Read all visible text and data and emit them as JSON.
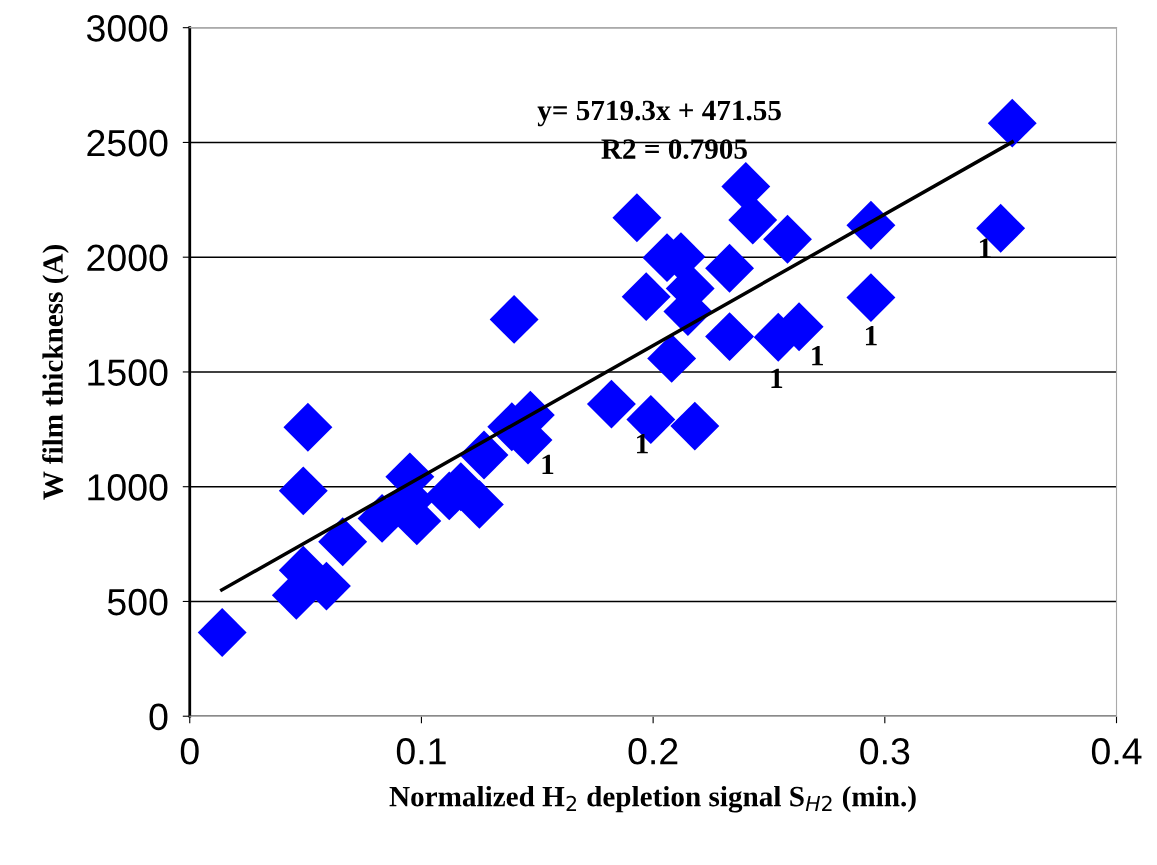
{
  "chart_data": {
    "type": "scatter",
    "xlabel": "Normalized H$_{2}$ depletion signal S$_{H2}$ (min.)",
    "ylabel": "W film thickness (A)",
    "series": [
      {
        "color": "#0000ff",
        "marker": "diamond",
        "x": [
          0.014,
          0.049,
          0.046,
          0.059,
          0.049,
          0.051,
          0.066,
          0.083,
          0.095,
          0.098,
          0.095,
          0.112,
          0.117,
          0.125,
          0.127,
          0.14,
          0.139,
          0.147,
          0.146,
          0.355,
          0.35,
          0.294,
          0.294,
          0.193,
          0.24,
          0.243,
          0.258,
          0.206,
          0.212,
          0.233,
          0.197,
          0.216,
          0.215,
          0.233,
          0.254,
          0.263,
          0.208,
          0.182,
          0.199,
          0.218
        ],
        "values": [
          365,
          636,
          527,
          567,
          982,
          1259,
          760,
          862,
          1043,
          851,
          942,
          960,
          1000,
          923,
          1138,
          1729,
          1261,
          1312,
          1203,
          2584,
          2126,
          2139,
          1824,
          2172,
          2308,
          2162,
          2078,
          1998,
          2002,
          1952,
          1828,
          1864,
          1763,
          1654,
          1651,
          1697,
          1559,
          1360,
          1293,
          1264
        ]
      },
      {
        "type": "line",
        "color": "#000000",
        "line_style": "solid",
        "x": [
          0.0138,
          0.355
        ],
        "values": [
          550,
          2502
        ]
      }
    ],
    "annotations": [
      "y= 5719.3x + 471.55",
      "R2 = 0.7905",
      "1",
      "1",
      "1",
      "1",
      "1",
      "1"
    ],
    "xlim": [
      0,
      0.4
    ],
    "xticks": [
      0,
      0.1,
      0.2,
      0.3,
      0.4
    ],
    "ylim": [
      0,
      3000
    ],
    "yticks": [
      0,
      500,
      1000,
      1500,
      2000,
      2500,
      3000
    ],
    "grid": "y",
    "legend": false
  }
}
